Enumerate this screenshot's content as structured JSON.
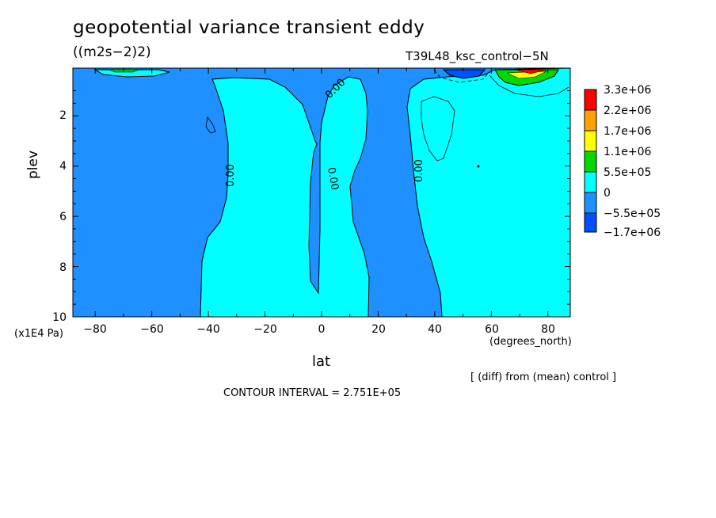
{
  "chart_data": {
    "type": "heatmap",
    "title": "geopotential variance transient eddy",
    "units": "((m2s−2)2)",
    "run_label": "T39L48_ksc_control−5N",
    "xlabel": "lat",
    "x_units": "(degrees_north)",
    "ylabel": "plev",
    "y_units": "(x1E4 Pa)",
    "x_ticks": [
      "−80",
      "−60",
      "−40",
      "−20",
      "0",
      "20",
      "40",
      "60",
      "80"
    ],
    "x_tick_values": [
      -80,
      -60,
      -40,
      -20,
      0,
      20,
      40,
      60,
      80
    ],
    "y_ticks": [
      "2",
      "4",
      "6",
      "8",
      "10"
    ],
    "y_tick_values": [
      2,
      4,
      6,
      8,
      10
    ],
    "xlim": [
      -87.9,
      87.9
    ],
    "ylim": [
      10,
      0.1
    ],
    "grid": false,
    "legend": {
      "placement": "right",
      "levels": [
        "3.3e+06",
        "2.2e+06",
        "1.7e+06",
        "1.1e+06",
        "5.5e+05",
        "0",
        "−5.5e+05",
        "−1.7e+06"
      ],
      "colors": [
        "#ff0000",
        "#ffa000",
        "#ffff00",
        "#00d800",
        "#00ffff",
        "#1e90ff",
        "#0050ff"
      ]
    },
    "contour_labels": [
      "0.00",
      "0.00",
      "0.00",
      "0.00"
    ],
    "footnote": "[ (diff) from (mean) control ]",
    "contour_interval": "CONTOUR INTERVAL = 2.751E+05"
  }
}
